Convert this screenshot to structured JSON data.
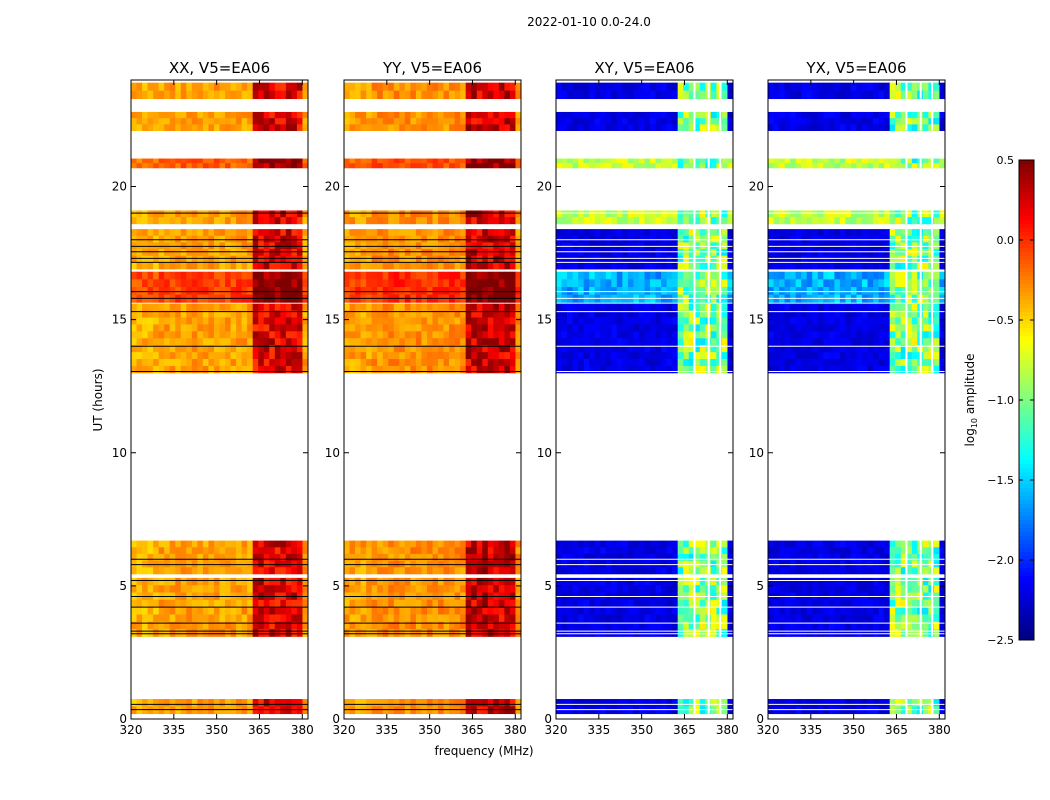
{
  "chart_data": {
    "type": "heatmap",
    "suptitle": "2022-01-10 0.0-24.0",
    "xlabel": "frequency (MHz)",
    "ylabel": "UT (hours)",
    "xlim": [
      320,
      382
    ],
    "ylim": [
      0,
      24
    ],
    "xticks": [
      320,
      335,
      350,
      365,
      380
    ],
    "yticks": [
      0,
      5,
      10,
      15,
      20
    ],
    "colorbar": {
      "label_prefix": "log",
      "label_subscript": "10",
      "label_suffix": " amplitude",
      "range": [
        -2.5,
        0.5
      ],
      "ticks": [
        "0.5",
        "0.0",
        "−0.5",
        "−1.0",
        "−1.5",
        "−2.0",
        "−2.5"
      ],
      "colormap": "jet",
      "colors": [
        "#00007f",
        "#0000ff",
        "#007fff",
        "#00ffff",
        "#7fff7f",
        "#ffff00",
        "#ff7f00",
        "#ff0000",
        "#7f0000"
      ]
    },
    "data_time_ranges_hours": [
      [
        0.2,
        0.75
      ],
      [
        3.1,
        5.3
      ],
      [
        5.45,
        6.7
      ],
      [
        13.0,
        15.6
      ],
      [
        15.65,
        16.8
      ],
      [
        16.9,
        18.4
      ],
      [
        18.6,
        19.1
      ],
      [
        20.7,
        21.05
      ],
      [
        22.1,
        22.8
      ],
      [
        23.3,
        23.9
      ]
    ],
    "gap_lines_hours": [
      0.35,
      0.55,
      3.2,
      3.3,
      3.6,
      4.2,
      4.6,
      5.2,
      5.8,
      6.0,
      13.05,
      14.0,
      15.3,
      15.8,
      16.05,
      17.15,
      17.3,
      17.55,
      17.75,
      18.0,
      19.0
    ],
    "rfi_band_MHz": [
      363,
      380
    ],
    "panels": [
      {
        "title": "XX, V5=EA06",
        "product": "parallel",
        "mean_log_amp": -0.35,
        "rfi_log_amp": 0.1
      },
      {
        "title": "YY, V5=EA06",
        "product": "parallel",
        "mean_log_amp": -0.3,
        "rfi_log_amp": 0.15
      },
      {
        "title": "XY, V5=EA06",
        "product": "cross",
        "mean_log_amp": -2.3,
        "rfi_log_amp": -1.2
      },
      {
        "title": "YX, V5=EA06",
        "product": "cross",
        "mean_log_amp": -2.3,
        "rfi_log_amp": -1.2
      }
    ]
  }
}
